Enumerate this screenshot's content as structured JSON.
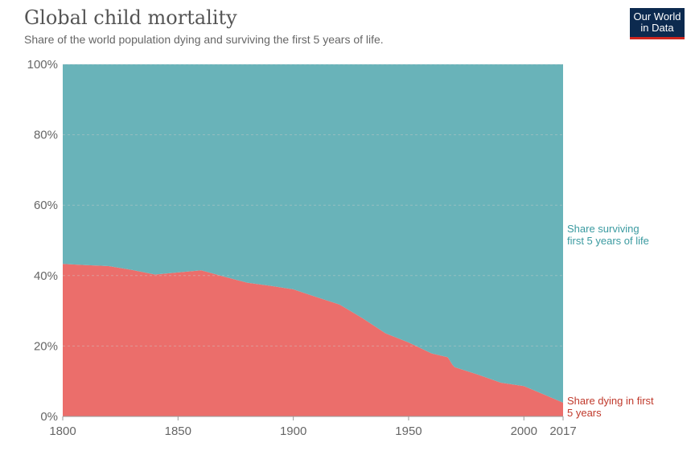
{
  "title": "Global child mortality",
  "subtitle": "Share of the world population dying and surviving the first 5 years of life.",
  "logo": {
    "line1": "Our World",
    "line2": "in Data",
    "color": "#0c2a4f",
    "accent": "#ce261e"
  },
  "chart_data": {
    "type": "area",
    "stacked": true,
    "xlim": [
      1800,
      2017
    ],
    "ylim": [
      0,
      100
    ],
    "y_unit": "%",
    "x_ticks": [
      "1800",
      "1850",
      "1900",
      "1950",
      "2000",
      "2017"
    ],
    "y_ticks": [
      "0%",
      "20%",
      "40%",
      "60%",
      "80%",
      "100%"
    ],
    "grid": "horizontal-dashed",
    "x": [
      1800,
      1810,
      1820,
      1830,
      1840,
      1850,
      1860,
      1870,
      1880,
      1890,
      1900,
      1910,
      1920,
      1930,
      1940,
      1950,
      1960,
      1967,
      1969,
      1970,
      1980,
      1990,
      2000,
      2010,
      2017
    ],
    "series": [
      {
        "name": "Share dying in first 5 years",
        "label_lines": [
          "Share dying in first",
          "5 years"
        ],
        "color": "#eb6e6b",
        "label_color": "#c0392b",
        "values": [
          43.3,
          43.0,
          42.7,
          41.6,
          40.3,
          40.9,
          41.5,
          39.7,
          38.0,
          37.1,
          36.1,
          33.9,
          31.8,
          27.9,
          23.6,
          21.0,
          17.9,
          16.8,
          14.7,
          14.0,
          11.9,
          9.6,
          8.6,
          5.9,
          3.9
        ]
      },
      {
        "name": "Share surviving first 5 years of life",
        "label_lines": [
          "Share surviving",
          "first 5 years of life"
        ],
        "color": "#69b3b9",
        "label_color": "#3a9aa0",
        "values": [
          56.7,
          57.0,
          57.3,
          58.4,
          59.7,
          59.1,
          58.5,
          60.3,
          62.0,
          62.9,
          63.9,
          66.1,
          68.2,
          72.1,
          76.4,
          79.0,
          82.1,
          83.2,
          85.3,
          86.0,
          88.1,
          90.4,
          91.4,
          94.1,
          96.1
        ]
      }
    ]
  }
}
